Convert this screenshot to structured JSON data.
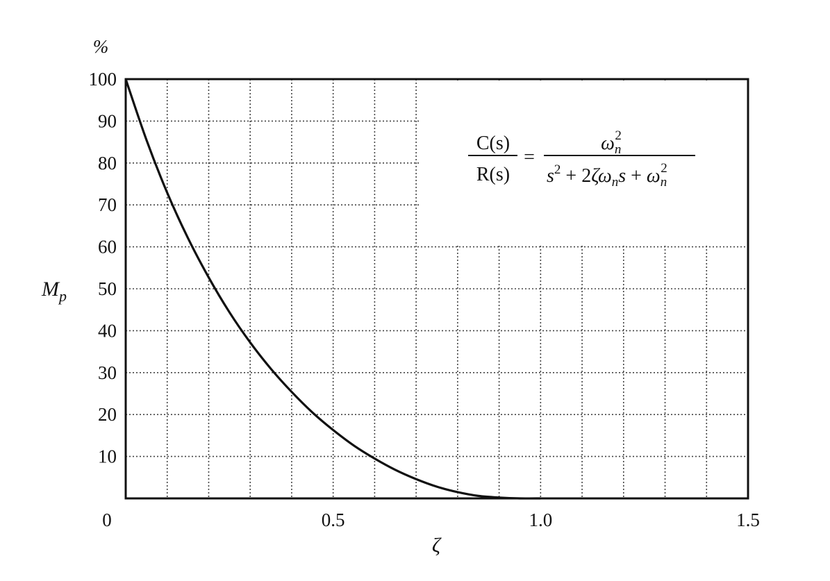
{
  "chart_data": {
    "type": "line",
    "ylabel_unit": "%",
    "ylabel": "M",
    "ylabel_sub": "p",
    "xlabel": "ζ",
    "xlim": [
      0,
      1.5
    ],
    "ylim": [
      0,
      100
    ],
    "grid": true,
    "x_ticks": [
      {
        "value": 0,
        "label": "0"
      },
      {
        "value": 0.5,
        "label": "0.5"
      },
      {
        "value": 1.0,
        "label": "1.0"
      },
      {
        "value": 1.5,
        "label": "1.5"
      }
    ],
    "y_ticks": [
      {
        "value": 10,
        "label": "10"
      },
      {
        "value": 20,
        "label": "20"
      },
      {
        "value": 30,
        "label": "30"
      },
      {
        "value": 40,
        "label": "40"
      },
      {
        "value": 50,
        "label": "50"
      },
      {
        "value": 60,
        "label": "60"
      },
      {
        "value": 70,
        "label": "70"
      },
      {
        "value": 80,
        "label": "80"
      },
      {
        "value": 90,
        "label": "90"
      },
      {
        "value": 100,
        "label": "100"
      }
    ],
    "x_grid_step": 0.1,
    "y_grid_step": 10,
    "series": [
      {
        "x": [
          0,
          0.05,
          0.1,
          0.15,
          0.2,
          0.25,
          0.3,
          0.35,
          0.4,
          0.45,
          0.5,
          0.55,
          0.6,
          0.65,
          0.7,
          0.75,
          0.8,
          0.85,
          0.9,
          0.95,
          1.0
        ],
        "y": [
          100,
          85.5,
          72.9,
          62.1,
          52.7,
          44.4,
          37.2,
          30.9,
          25.4,
          20.5,
          16.3,
          12.6,
          9.5,
          6.8,
          4.6,
          2.8,
          1.5,
          0.6,
          0.2,
          0.0,
          0.0
        ]
      }
    ],
    "annotation": {
      "lhs_num": "C(s)",
      "lhs_den": "R(s)",
      "equals": "=",
      "rhs_num_base": "ω",
      "rhs_num_sub": "n",
      "rhs_num_sup": "2",
      "rhs_den": {
        "s": "s",
        "s_sup": "2",
        "plus1": " + 2",
        "zeta": "ζ",
        "omega": "ω",
        "omega_sub": "n",
        "s2": "s",
        "plus2": " + ",
        "omega2": "ω",
        "omega2_sub": "n",
        "omega2_sup": "2"
      }
    }
  }
}
